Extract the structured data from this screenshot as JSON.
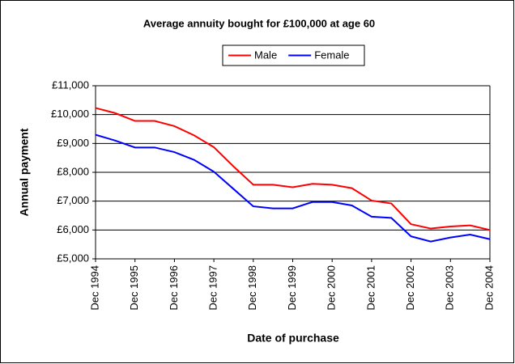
{
  "chart_data": {
    "type": "line",
    "title": "Average annuity bought for £100,000 at age 60",
    "x_label": "Date of purchase",
    "y_label": "Annual payment",
    "categories": [
      "Dec 1994",
      null,
      "Dec 1995",
      null,
      "Dec 1996",
      null,
      "Dec 1997",
      null,
      "Dec 1998",
      null,
      "Dec 1999",
      null,
      "Dec 2000",
      null,
      "Dec 2001",
      null,
      "Dec 2002",
      null,
      "Dec 2003",
      null,
      "Dec 2004"
    ],
    "series": [
      {
        "name": "Male",
        "color": "#ff0000",
        "values": [
          10230,
          10050,
          9780,
          9780,
          9600,
          9280,
          8870,
          8200,
          7570,
          7570,
          7480,
          7600,
          7570,
          7450,
          7020,
          6920,
          6200,
          6050,
          6120,
          6160,
          6000
        ]
      },
      {
        "name": "Female",
        "color": "#0000ff",
        "values": [
          9300,
          9100,
          8860,
          8860,
          8700,
          8430,
          8020,
          7420,
          6820,
          6750,
          6750,
          6970,
          6970,
          6850,
          6460,
          6420,
          5780,
          5600,
          5740,
          5840,
          5680
        ]
      }
    ],
    "ylim": [
      5000,
      11000
    ],
    "yticks": [
      {
        "value": 5000,
        "label": "£5,000"
      },
      {
        "value": 6000,
        "label": "£6,000"
      },
      {
        "value": 7000,
        "label": "£7,000"
      },
      {
        "value": 8000,
        "label": "£8,000"
      },
      {
        "value": 9000,
        "label": "£9,000"
      },
      {
        "value": 10000,
        "label": "£10,000"
      },
      {
        "value": 11000,
        "label": "£11,000"
      }
    ],
    "grid": true,
    "legend": "top"
  }
}
